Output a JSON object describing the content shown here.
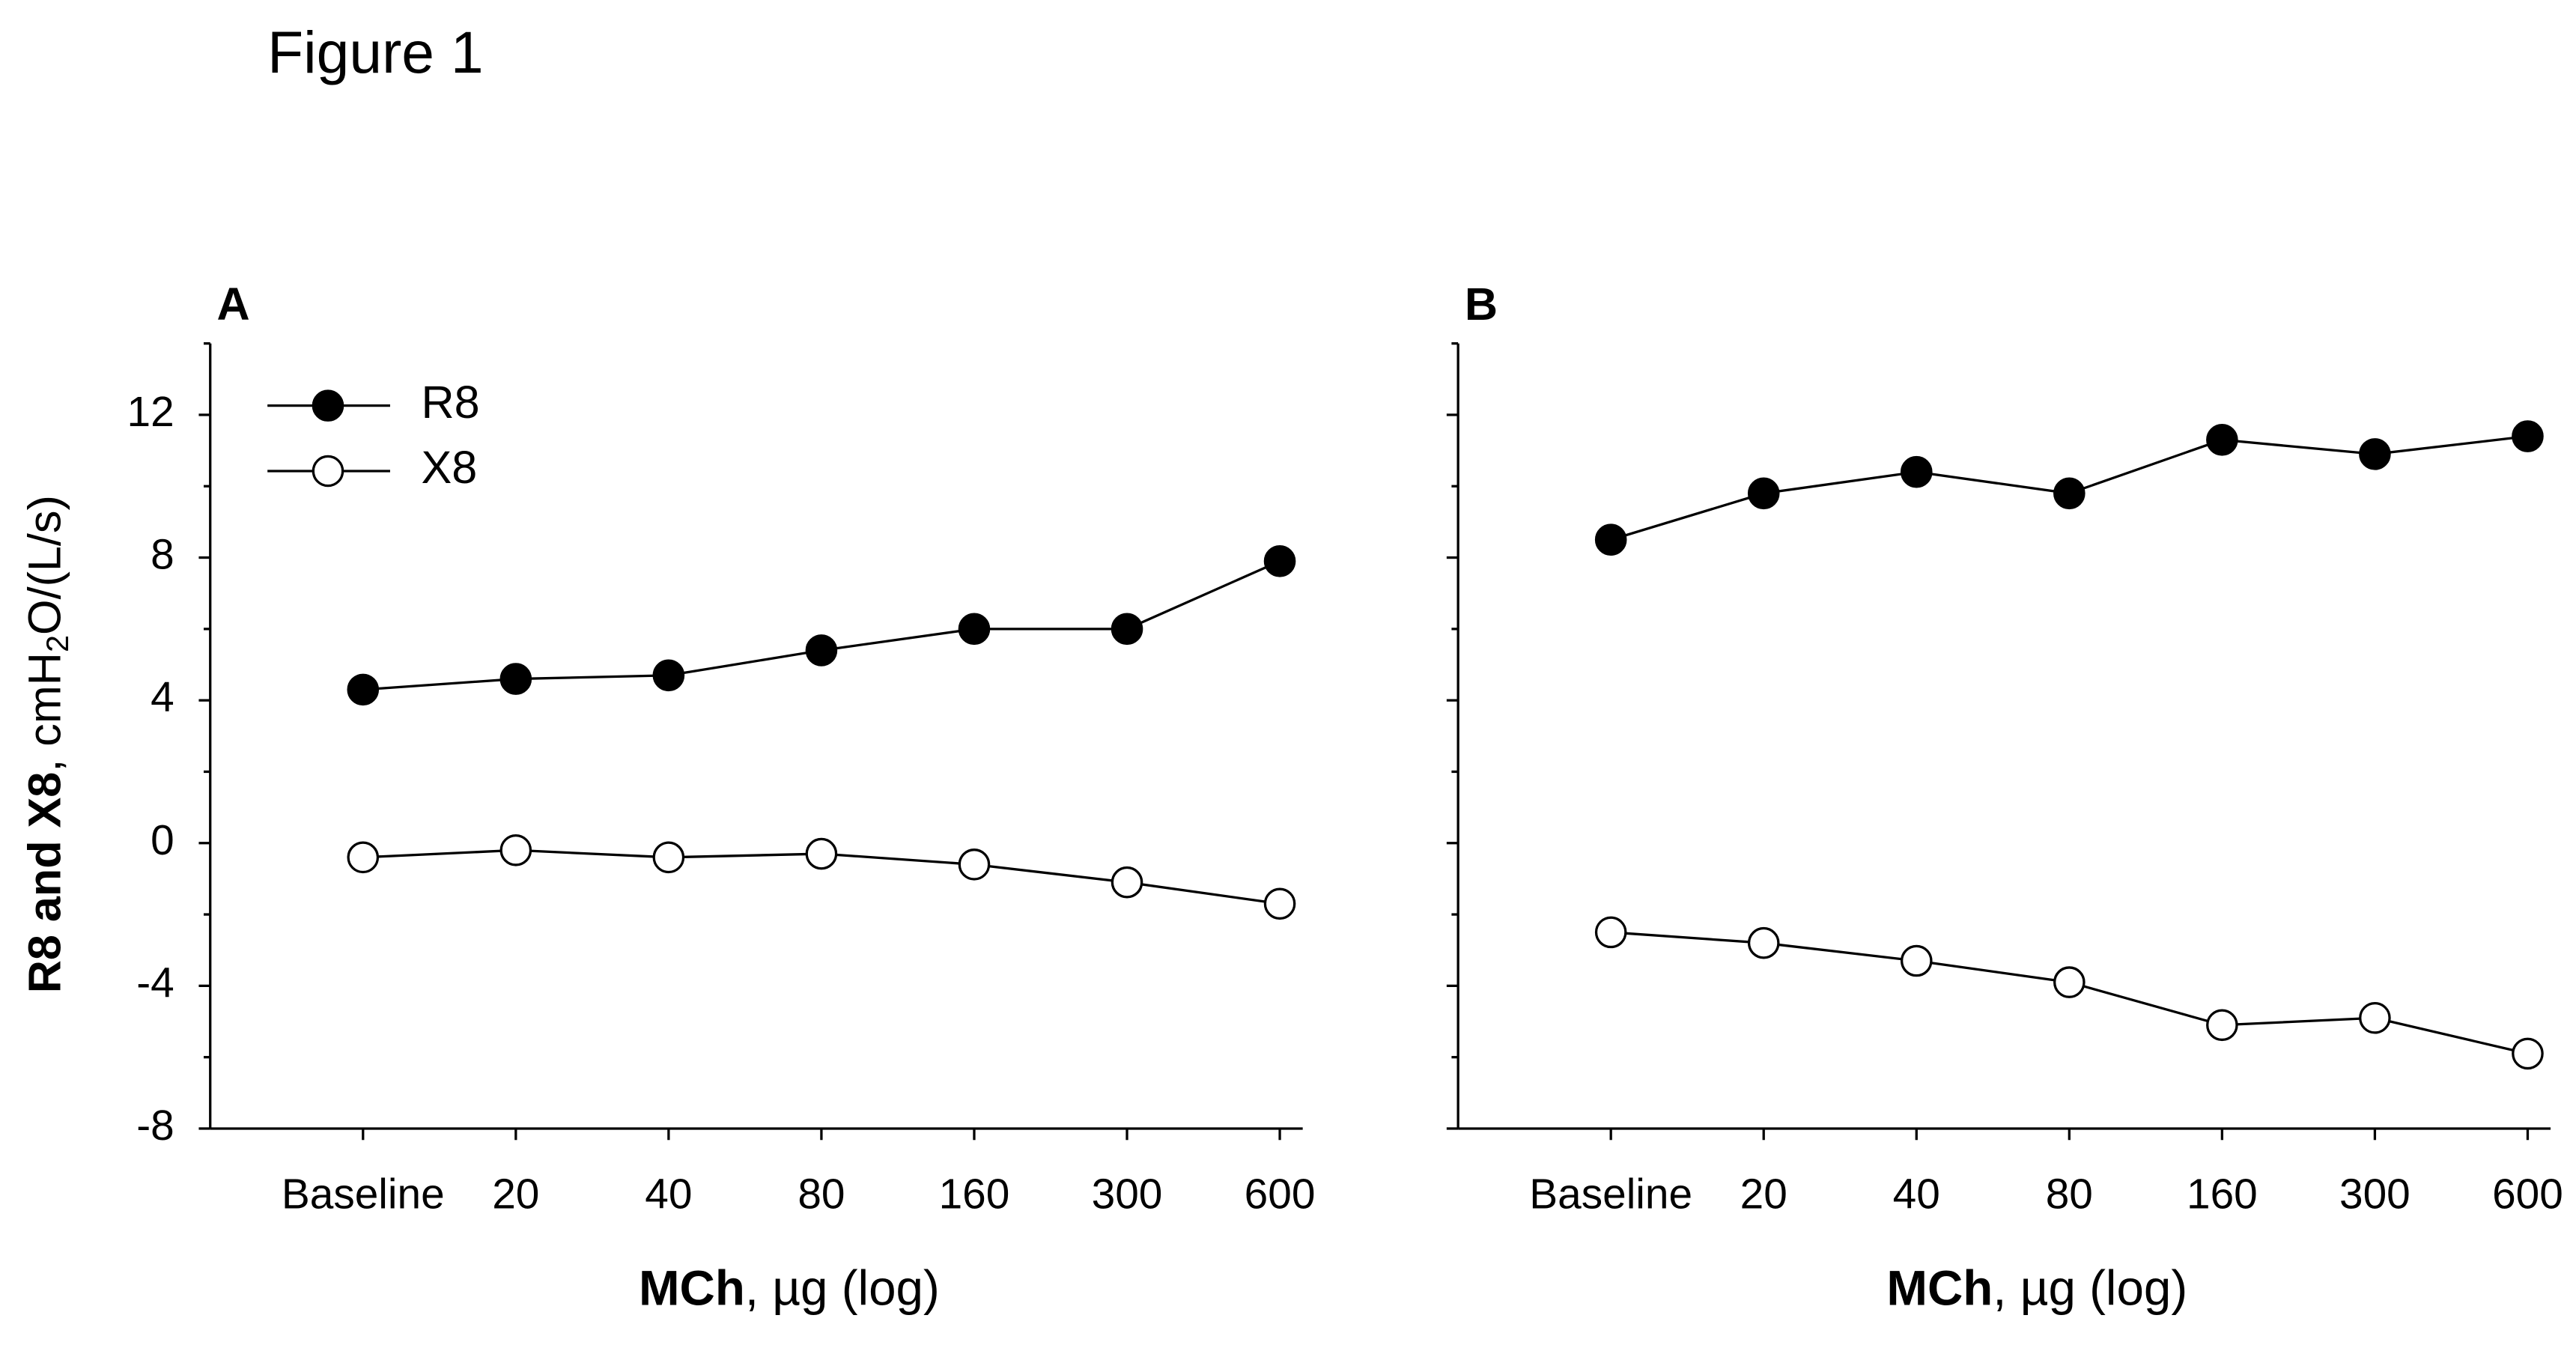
{
  "title": "Figure 1",
  "chart_data": [
    {
      "type": "line",
      "label": "A",
      "categories": [
        "Baseline",
        "20",
        "40",
        "80",
        "160",
        "300",
        "600"
      ],
      "xlabel": [
        "MCh",
        ", µg (log)"
      ],
      "ylabel": [
        "R8 and X8",
        ", cmH",
        "2",
        "O/(L/s)"
      ],
      "ylim": [
        -8,
        14
      ],
      "yticks": [
        -8,
        -4,
        0,
        4,
        8,
        12
      ],
      "yminor": [
        -6,
        -2,
        2,
        6,
        10,
        14
      ],
      "show_ytick_labels": true,
      "legend": "upper left",
      "series": [
        {
          "name": "R8",
          "color": "#000000",
          "marker_fill": "#000000",
          "values": [
            4.3,
            4.6,
            4.7,
            5.4,
            6.0,
            6.0,
            7.9
          ]
        },
        {
          "name": "X8",
          "color": "#000000",
          "marker_fill": "#ffffff",
          "values": [
            -0.4,
            -0.2,
            -0.4,
            -0.3,
            -0.6,
            -1.1,
            -1.7
          ]
        }
      ]
    },
    {
      "type": "line",
      "label": "B",
      "categories": [
        "Baseline",
        "20",
        "40",
        "80",
        "160",
        "300",
        "600"
      ],
      "xlabel": [
        "MCh",
        ", µg (log)"
      ],
      "ylim": [
        -8,
        14
      ],
      "yticks": [
        -8,
        -4,
        0,
        4,
        8,
        12
      ],
      "yminor": [
        -6,
        -2,
        2,
        6,
        10,
        14
      ],
      "show_ytick_labels": false,
      "series": [
        {
          "color": "#000000",
          "marker_fill": "#000000",
          "values": [
            8.5,
            9.8,
            10.4,
            9.8,
            11.3,
            10.9,
            11.4
          ]
        },
        {
          "color": "#000000",
          "marker_fill": "#ffffff",
          "values": [
            -2.5,
            -2.8,
            -3.3,
            -3.9,
            -5.1,
            -4.9,
            -5.9
          ]
        }
      ]
    }
  ]
}
